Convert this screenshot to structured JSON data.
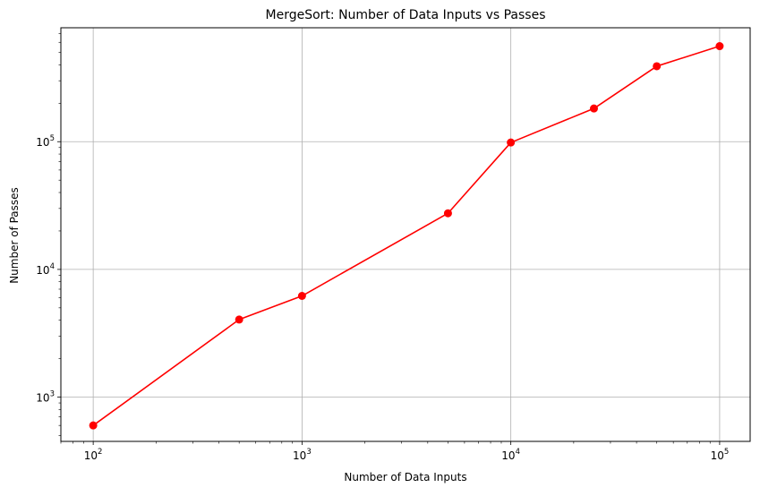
{
  "chart_data": {
    "type": "line",
    "title": "MergeSort: Number of Data Inputs vs Passes",
    "xlabel": "Number of Data Inputs",
    "ylabel": "Number of Passes",
    "x_scale": "log",
    "y_scale": "log",
    "xlim": [
      70,
      140000
    ],
    "ylim": [
      450,
      780000
    ],
    "grid": true,
    "x_ticks": [
      {
        "value": 100,
        "base": "10",
        "exp": "2"
      },
      {
        "value": 1000,
        "base": "10",
        "exp": "3"
      },
      {
        "value": 10000,
        "base": "10",
        "exp": "4"
      },
      {
        "value": 100000,
        "base": "10",
        "exp": "5"
      }
    ],
    "y_ticks": [
      {
        "value": 1000,
        "base": "10",
        "exp": "3"
      },
      {
        "value": 10000,
        "base": "10",
        "exp": "4"
      },
      {
        "value": 100000,
        "base": "10",
        "exp": "5"
      }
    ],
    "series": [
      {
        "color": "#ff0000",
        "marker": "circle",
        "x": [
          100,
          500,
          1000,
          5000,
          10000,
          25000,
          50000,
          100000
        ],
        "y": [
          600,
          4050,
          6200,
          27500,
          98500,
          182000,
          390000,
          560000
        ]
      }
    ]
  }
}
